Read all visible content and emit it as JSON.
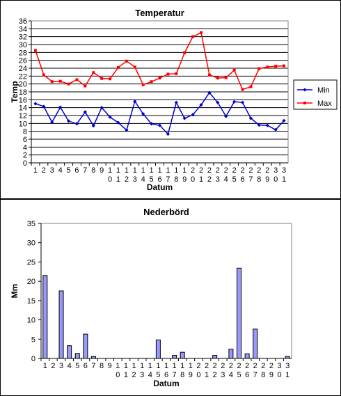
{
  "chart_data": [
    {
      "type": "line",
      "title": "Temperatur",
      "xlabel": "Datum",
      "ylabel": "Temp",
      "ylim": [
        0,
        36
      ],
      "y_ticks": [
        "0",
        "2",
        "4",
        "6",
        "8",
        "10",
        "12",
        "14",
        "16",
        "18",
        "20",
        "22",
        "24",
        "26",
        "28",
        "30",
        "32",
        "34",
        "36"
      ],
      "x_ticks_top": [
        "1",
        "2",
        "3",
        "4",
        "5",
        "6",
        "7",
        "8",
        "9",
        "1",
        "1",
        "1",
        "1",
        "1",
        "1",
        "1",
        "1",
        "1",
        "1",
        "2",
        "2",
        "2",
        "2",
        "2",
        "2",
        "2",
        "2",
        "2",
        "2",
        "3",
        "3"
      ],
      "x_ticks_bottom": [
        "",
        "",
        "",
        "",
        "",
        "",
        "",
        "",
        "",
        "0",
        "1",
        "2",
        "3",
        "4",
        "5",
        "6",
        "7",
        "8",
        "9",
        "0",
        "1",
        "2",
        "3",
        "4",
        "5",
        "6",
        "7",
        "8",
        "9",
        "0",
        "1"
      ],
      "categories": [
        1,
        2,
        3,
        4,
        5,
        6,
        7,
        8,
        9,
        10,
        11,
        12,
        13,
        14,
        15,
        16,
        17,
        18,
        19,
        20,
        21,
        22,
        23,
        24,
        25,
        26,
        27,
        28,
        29,
        30,
        31
      ],
      "grid": true,
      "legend_position": "right",
      "series": [
        {
          "name": "Min",
          "color": "#0000cc",
          "values": [
            15.0,
            14.3,
            10.3,
            14.1,
            10.6,
            9.9,
            12.9,
            9.4,
            14.0,
            11.6,
            10.2,
            8.3,
            15.6,
            12.4,
            9.9,
            9.5,
            7.3,
            15.3,
            11.3,
            12.2,
            14.7,
            17.8,
            15.3,
            11.8,
            15.5,
            15.3,
            11.3,
            9.6,
            9.5,
            8.4,
            10.7
          ]
        },
        {
          "name": "Max",
          "color": "#ff0000",
          "values": [
            28.5,
            22.3,
            20.6,
            20.7,
            20.0,
            21.1,
            19.5,
            22.9,
            21.4,
            21.3,
            24.2,
            25.8,
            24.3,
            19.8,
            20.6,
            21.5,
            22.5,
            22.6,
            27.9,
            32.0,
            33.0,
            22.3,
            21.5,
            21.6,
            23.5,
            18.6,
            19.3,
            23.9,
            24.3,
            24.5,
            24.6
          ]
        }
      ]
    },
    {
      "type": "bar",
      "title": "Nederbörd",
      "xlabel": "Datum",
      "ylabel": "Mm",
      "ylim": [
        0,
        35
      ],
      "y_ticks": [
        "0",
        "5",
        "10",
        "15",
        "20",
        "25",
        "30",
        "35"
      ],
      "x_ticks_top": [
        "1",
        "2",
        "3",
        "4",
        "5",
        "6",
        "7",
        "8",
        "9",
        "1",
        "1",
        "1",
        "1",
        "1",
        "1",
        "1",
        "1",
        "1",
        "1",
        "2",
        "2",
        "2",
        "2",
        "2",
        "2",
        "2",
        "2",
        "2",
        "2",
        "3",
        "3"
      ],
      "x_ticks_bottom": [
        "",
        "",
        "",
        "",
        "",
        "",
        "",
        "",
        "",
        "0",
        "1",
        "2",
        "3",
        "4",
        "5",
        "6",
        "7",
        "8",
        "9",
        "0",
        "1",
        "2",
        "3",
        "4",
        "5",
        "6",
        "7",
        "8",
        "9",
        "0",
        "1"
      ],
      "categories": [
        1,
        2,
        3,
        4,
        5,
        6,
        7,
        8,
        9,
        10,
        11,
        12,
        13,
        14,
        15,
        16,
        17,
        18,
        19,
        20,
        21,
        22,
        23,
        24,
        25,
        26,
        27,
        28,
        29,
        30,
        31
      ],
      "grid": false,
      "bar_color": "#9999ff",
      "values": [
        21.5,
        0,
        17.5,
        3.3,
        1.3,
        6.3,
        0.5,
        0,
        0,
        0,
        0,
        0,
        0,
        0,
        4.8,
        0,
        0.8,
        1.6,
        0,
        0,
        0,
        0.8,
        0,
        2.4,
        23.4,
        1.2,
        7.6,
        0,
        0,
        0,
        0.5
      ]
    }
  ]
}
